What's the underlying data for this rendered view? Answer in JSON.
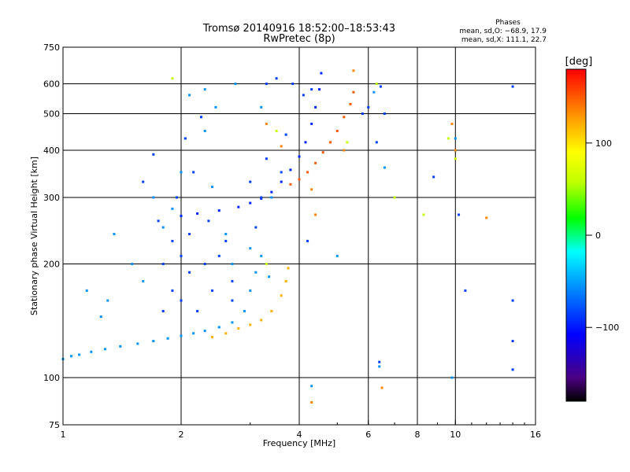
{
  "chart_data": {
    "type": "scatter",
    "title": "Tromsø 20140916 18:52:00–18:53:43",
    "subtitle": "RwPretec (8p)",
    "xlabel": "Frequency [MHz]",
    "ylabel": "Stationary phase Virtual Height [km]",
    "x_scale": "log",
    "y_scale": "log",
    "xlim": [
      1,
      16
    ],
    "ylim": [
      75,
      750
    ],
    "x_ticks": [
      1,
      2,
      4,
      6,
      8,
      10,
      16
    ],
    "x_tick_labels": [
      "1",
      "2",
      "4",
      "6",
      "8",
      "10",
      "16"
    ],
    "x_gridlines": [
      2,
      4,
      6,
      8,
      10
    ],
    "y_ticks": [
      75,
      100,
      200,
      300,
      400,
      500,
      600,
      750
    ],
    "y_tick_labels": [
      "75",
      "100",
      "200",
      "300",
      "400",
      "500",
      "600",
      "750"
    ],
    "y_gridlines": [
      100,
      200,
      300,
      400,
      500,
      600
    ],
    "stats": {
      "heading": "Phases",
      "line_o": "mean, sd,O: −68.9, 17.9",
      "line_x": "mean, sd,X: 111.1, 22.7"
    },
    "colorbar": {
      "label": "[deg]",
      "range": [
        -180,
        180
      ],
      "ticks": [
        100,
        0,
        -100
      ],
      "tick_labels": [
        "100",
        "0",
        "−100"
      ],
      "colormap": "rainbow"
    },
    "series": [
      {
        "name": "O-mode lower F trace (cyan)",
        "phase": -55,
        "points": [
          [
            1.0,
            112
          ],
          [
            1.05,
            114
          ],
          [
            1.1,
            115
          ],
          [
            1.18,
            117
          ],
          [
            1.28,
            119
          ],
          [
            1.4,
            121
          ],
          [
            1.55,
            123
          ],
          [
            1.7,
            125
          ],
          [
            1.85,
            127
          ],
          [
            2.0,
            129
          ],
          [
            2.15,
            131
          ],
          [
            2.3,
            133
          ],
          [
            2.5,
            136
          ],
          [
            2.7,
            140
          ],
          [
            2.9,
            150
          ],
          [
            3.0,
            170
          ],
          [
            3.1,
            190
          ],
          [
            3.2,
            210
          ]
        ]
      },
      {
        "name": "O-mode upper F trace (blue)",
        "phase": -95,
        "points": [
          [
            2.0,
            268
          ],
          [
            2.2,
            272
          ],
          [
            2.5,
            277
          ],
          [
            2.8,
            283
          ],
          [
            3.0,
            290
          ],
          [
            3.2,
            298
          ],
          [
            3.4,
            310
          ],
          [
            3.6,
            330
          ],
          [
            3.8,
            355
          ],
          [
            4.0,
            385
          ],
          [
            4.15,
            420
          ],
          [
            4.3,
            470
          ],
          [
            4.4,
            520
          ],
          [
            4.5,
            580
          ],
          [
            4.55,
            640
          ]
        ]
      },
      {
        "name": "X-mode lower F trace (orange)",
        "phase": 120,
        "points": [
          [
            2.4,
            128
          ],
          [
            2.6,
            131
          ],
          [
            2.8,
            135
          ],
          [
            3.0,
            138
          ],
          [
            3.2,
            142
          ],
          [
            3.4,
            150
          ],
          [
            3.6,
            165
          ],
          [
            3.7,
            180
          ],
          [
            3.75,
            195
          ]
        ]
      },
      {
        "name": "X-mode upper F trace (red-orange)",
        "phase": 150,
        "points": [
          [
            3.8,
            325
          ],
          [
            4.0,
            335
          ],
          [
            4.2,
            350
          ],
          [
            4.4,
            370
          ],
          [
            4.6,
            395
          ],
          [
            4.8,
            420
          ],
          [
            5.0,
            450
          ],
          [
            5.2,
            490
          ],
          [
            5.4,
            530
          ],
          [
            5.5,
            570
          ]
        ]
      },
      {
        "name": "Scattered echoes (blue)",
        "phase": -85,
        "points": [
          [
            1.6,
            330
          ],
          [
            1.7,
            390
          ],
          [
            1.75,
            260
          ],
          [
            1.8,
            200
          ],
          [
            1.8,
            150
          ],
          [
            1.9,
            230
          ],
          [
            1.9,
            170
          ],
          [
            1.95,
            300
          ],
          [
            2.0,
            210
          ],
          [
            2.0,
            160
          ],
          [
            2.05,
            430
          ],
          [
            2.1,
            190
          ],
          [
            2.1,
            240
          ],
          [
            2.15,
            350
          ],
          [
            2.2,
            150
          ],
          [
            2.25,
            490
          ],
          [
            2.3,
            200
          ],
          [
            2.35,
            260
          ],
          [
            2.4,
            170
          ],
          [
            2.5,
            210
          ],
          [
            2.6,
            230
          ],
          [
            2.7,
            180
          ],
          [
            2.7,
            160
          ],
          [
            3.0,
            330
          ],
          [
            3.1,
            250
          ],
          [
            3.2,
            300
          ],
          [
            3.3,
            380
          ],
          [
            3.3,
            600
          ],
          [
            3.5,
            620
          ],
          [
            3.6,
            350
          ],
          [
            3.7,
            440
          ],
          [
            3.85,
            600
          ],
          [
            4.1,
            560
          ],
          [
            4.2,
            230
          ],
          [
            4.3,
            580
          ],
          [
            5.8,
            500
          ],
          [
            6.0,
            520
          ],
          [
            6.3,
            420
          ],
          [
            6.3,
            600
          ],
          [
            6.45,
            590
          ],
          [
            6.6,
            500
          ],
          [
            8.8,
            340
          ],
          [
            10.2,
            270
          ],
          [
            10.6,
            170
          ],
          [
            14.0,
            590
          ],
          [
            14.0,
            160
          ],
          [
            14.0,
            125
          ],
          [
            14.0,
            105
          ],
          [
            6.4,
            110
          ]
        ]
      },
      {
        "name": "Scattered echoes (cyan)",
        "phase": -55,
        "points": [
          [
            1.35,
            240
          ],
          [
            1.5,
            200
          ],
          [
            1.6,
            180
          ],
          [
            1.7,
            300
          ],
          [
            1.8,
            250
          ],
          [
            1.9,
            280
          ],
          [
            2.0,
            350
          ],
          [
            2.1,
            560
          ],
          [
            2.3,
            450
          ],
          [
            2.3,
            580
          ],
          [
            2.4,
            320
          ],
          [
            2.45,
            520
          ],
          [
            2.6,
            240
          ],
          [
            2.7,
            200
          ],
          [
            2.75,
            600
          ],
          [
            3.0,
            220
          ],
          [
            3.2,
            520
          ],
          [
            3.35,
            185
          ],
          [
            3.4,
            300
          ],
          [
            4.3,
            95
          ],
          [
            5.0,
            210
          ],
          [
            6.4,
            107
          ],
          [
            6.2,
            570
          ],
          [
            6.6,
            360
          ],
          [
            9.8,
            100
          ],
          [
            10.0,
            430
          ],
          [
            1.15,
            170
          ],
          [
            1.25,
            145
          ],
          [
            1.3,
            160
          ]
        ]
      },
      {
        "name": "Scattered echoes (green/yellow)",
        "phase": 60,
        "points": [
          [
            1.9,
            620
          ],
          [
            3.3,
            200
          ],
          [
            3.5,
            450
          ],
          [
            5.3,
            420
          ],
          [
            6.3,
            600
          ],
          [
            7.0,
            300
          ],
          [
            8.3,
            270
          ],
          [
            9.6,
            430
          ],
          [
            10.0,
            380
          ]
        ]
      },
      {
        "name": "Scattered echoes (orange/red)",
        "phase": 135,
        "points": [
          [
            3.3,
            470
          ],
          [
            3.6,
            410
          ],
          [
            4.3,
            86
          ],
          [
            5.2,
            400
          ],
          [
            5.5,
            650
          ],
          [
            6.5,
            94
          ],
          [
            9.8,
            470
          ],
          [
            10.0,
            400
          ],
          [
            12.0,
            265
          ],
          [
            4.4,
            270
          ],
          [
            4.3,
            315
          ]
        ]
      }
    ]
  }
}
